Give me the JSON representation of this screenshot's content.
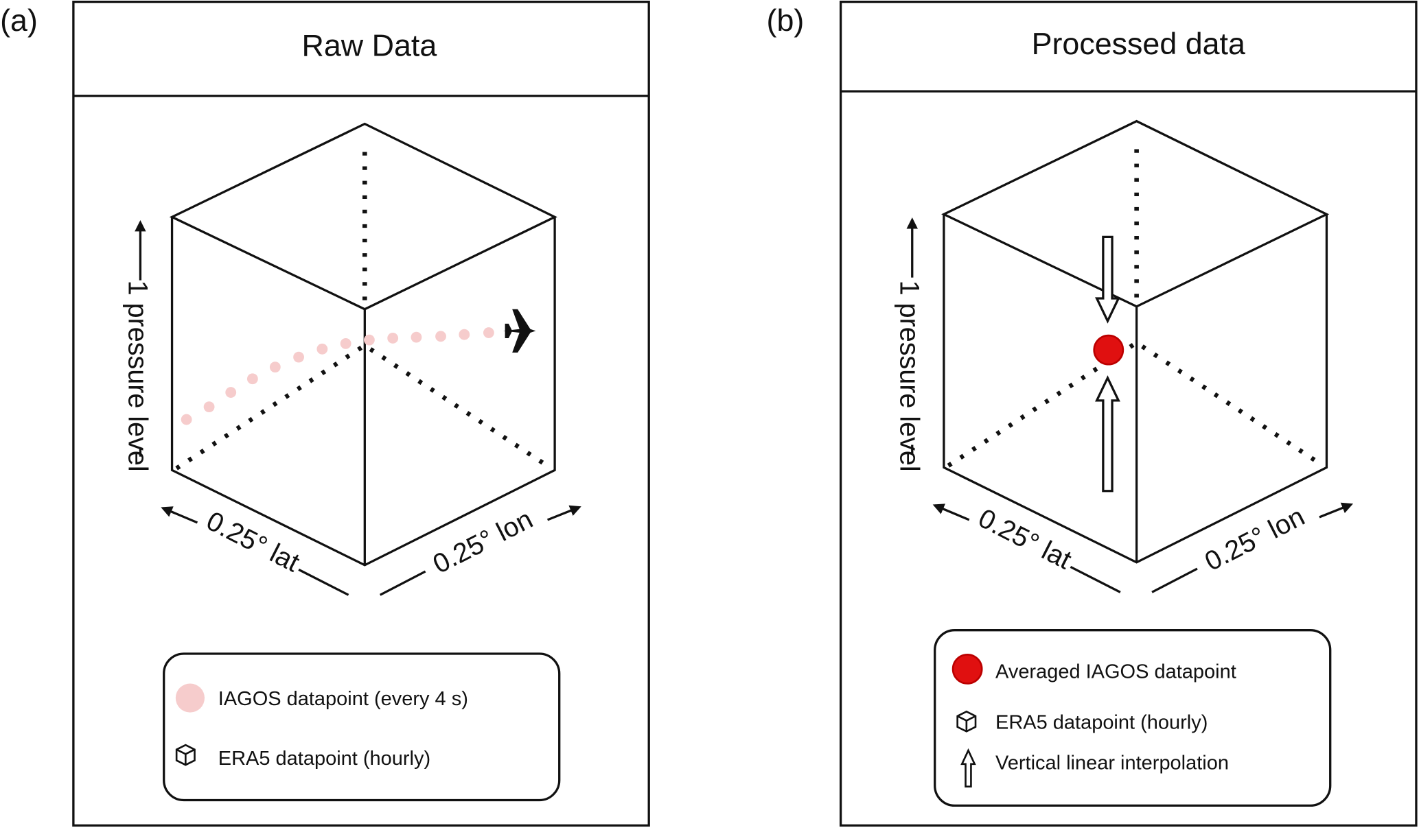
{
  "panels": [
    {
      "label": "(a)",
      "title": "Raw Data",
      "vertical_axis": "1 pressure level",
      "lat_axis": "0.25° lat",
      "lon_axis": "0.25° lon",
      "legend": [
        "IAGOS datapoint (every 4 s)",
        "ERA5 datapoint (hourly)"
      ]
    },
    {
      "label": "(b)",
      "title": "Processed data",
      "vertical_axis": "1 pressure level",
      "lat_axis": "0.25° lat",
      "lon_axis": "0.25° lon",
      "legend": [
        "Averaged IAGOS datapoint",
        "ERA5 datapoint (hourly)",
        "Vertical linear interpolation"
      ]
    }
  ]
}
